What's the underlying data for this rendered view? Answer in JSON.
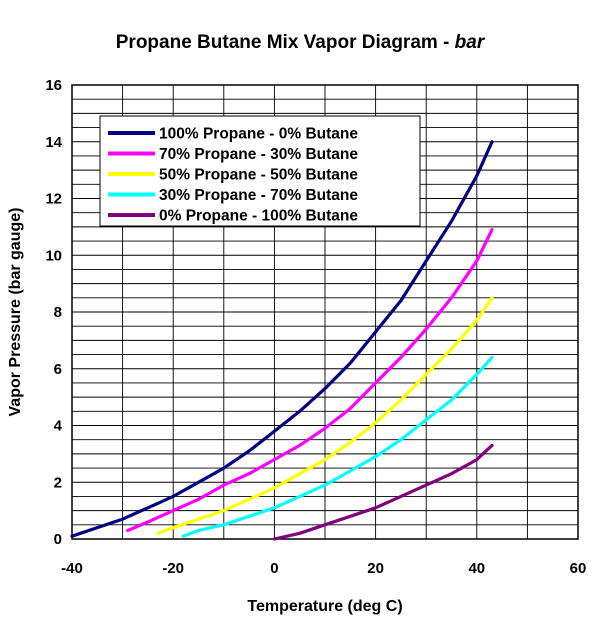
{
  "chart_data": {
    "type": "line",
    "title": "Propane Butane Mix Vapor Diagram - ",
    "title_suffix": "bar",
    "xlabel": "Temperature (deg C)",
    "ylabel": "Vapor Pressure (bar gauge)",
    "xlim": [
      -40,
      60
    ],
    "ylim": [
      0,
      16
    ],
    "x_ticks": [
      "-40",
      "-20",
      "0",
      "20",
      "40",
      "60"
    ],
    "y_ticks": [
      "0",
      "2",
      "4",
      "6",
      "8",
      "10",
      "12",
      "14",
      "16"
    ],
    "grid": true,
    "legend_position": "top-left",
    "series": [
      {
        "name": "100% Propane - 0% Butane",
        "color": "#000080",
        "points": [
          [
            -40,
            0.1
          ],
          [
            -35,
            0.4
          ],
          [
            -30,
            0.7
          ],
          [
            -25,
            1.1
          ],
          [
            -20,
            1.5
          ],
          [
            -15,
            2.0
          ],
          [
            -10,
            2.5
          ],
          [
            -5,
            3.1
          ],
          [
            0,
            3.8
          ],
          [
            5,
            4.5
          ],
          [
            10,
            5.3
          ],
          [
            15,
            6.2
          ],
          [
            20,
            7.3
          ],
          [
            25,
            8.4
          ],
          [
            30,
            9.8
          ],
          [
            35,
            11.2
          ],
          [
            40,
            12.8
          ],
          [
            43,
            14.0
          ]
        ]
      },
      {
        "name": "70% Propane - 30% Butane",
        "color": "#ff00ff",
        "points": [
          [
            -29,
            0.3
          ],
          [
            -25,
            0.6
          ],
          [
            -20,
            1.0
          ],
          [
            -15,
            1.4
          ],
          [
            -10,
            1.9
          ],
          [
            -5,
            2.3
          ],
          [
            0,
            2.8
          ],
          [
            5,
            3.3
          ],
          [
            10,
            3.9
          ],
          [
            15,
            4.6
          ],
          [
            20,
            5.5
          ],
          [
            25,
            6.4
          ],
          [
            30,
            7.4
          ],
          [
            35,
            8.5
          ],
          [
            40,
            9.8
          ],
          [
            43,
            10.9
          ]
        ]
      },
      {
        "name": "50% Propane - 50% Butane",
        "color": "#ffff00",
        "points": [
          [
            -23,
            0.2
          ],
          [
            -20,
            0.4
          ],
          [
            -15,
            0.7
          ],
          [
            -10,
            1.0
          ],
          [
            -5,
            1.4
          ],
          [
            0,
            1.8
          ],
          [
            5,
            2.3
          ],
          [
            10,
            2.8
          ],
          [
            15,
            3.4
          ],
          [
            20,
            4.1
          ],
          [
            25,
            4.9
          ],
          [
            30,
            5.8
          ],
          [
            35,
            6.7
          ],
          [
            40,
            7.7
          ],
          [
            43,
            8.5
          ]
        ]
      },
      {
        "name": "30% Propane - 70% Butane",
        "color": "#00ffff",
        "points": [
          [
            -18,
            0.1
          ],
          [
            -15,
            0.3
          ],
          [
            -10,
            0.5
          ],
          [
            -5,
            0.8
          ],
          [
            0,
            1.1
          ],
          [
            5,
            1.5
          ],
          [
            10,
            1.9
          ],
          [
            15,
            2.4
          ],
          [
            20,
            2.9
          ],
          [
            25,
            3.5
          ],
          [
            30,
            4.2
          ],
          [
            35,
            4.9
          ],
          [
            40,
            5.8
          ],
          [
            43,
            6.4
          ]
        ]
      },
      {
        "name": "0% Propane - 100% Butane",
        "color": "#800080",
        "points": [
          [
            0,
            0.0
          ],
          [
            5,
            0.2
          ],
          [
            10,
            0.5
          ],
          [
            15,
            0.8
          ],
          [
            20,
            1.1
          ],
          [
            25,
            1.5
          ],
          [
            30,
            1.9
          ],
          [
            35,
            2.3
          ],
          [
            40,
            2.8
          ],
          [
            43,
            3.3
          ]
        ]
      }
    ]
  }
}
